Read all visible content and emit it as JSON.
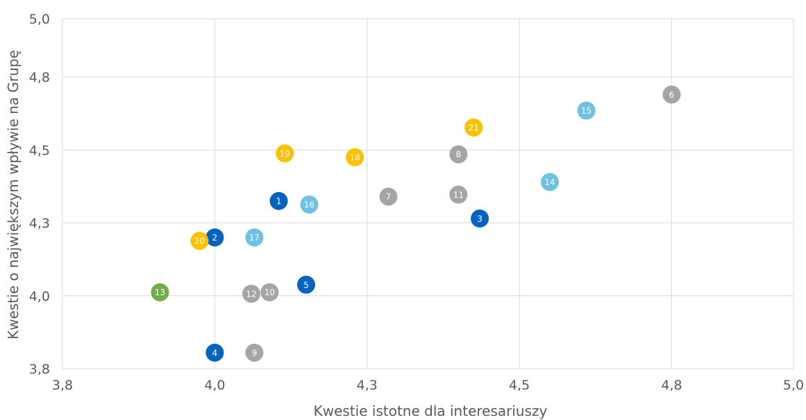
{
  "chart_data": {
    "type": "scatter",
    "xlabel": "Kwestie istotne dla interesariuszy",
    "ylabel": "Kwestie o największym wpływie na Grupę",
    "xlim": [
      3.8,
      5.0
    ],
    "ylim": [
      3.8,
      5.0
    ],
    "x_ticks": [
      3.8,
      4.05,
      4.3,
      4.55,
      4.8,
      5.05
    ],
    "y_ticks": [
      3.8,
      4.05,
      4.3,
      4.55,
      4.8,
      5.05
    ],
    "x_tick_labels": [
      "3,8",
      "4,0",
      "4,3",
      "4,5",
      "4,8",
      "5,0"
    ],
    "y_tick_labels": [
      "3,8",
      "4,0",
      "4,3",
      "4,5",
      "4,8",
      "5,0"
    ],
    "grid": true,
    "colors": {
      "dark-blue": "#0563c1",
      "light-blue": "#6ec1e4",
      "gray": "#a5a5a5",
      "yellow": "#ffc000",
      "green": "#70ad47"
    },
    "points": [
      {
        "label": "1",
        "x": 4.155,
        "y": 4.375,
        "color": "dark-blue"
      },
      {
        "label": "2",
        "x": 4.05,
        "y": 4.25,
        "color": "dark-blue"
      },
      {
        "label": "3",
        "x": 4.485,
        "y": 4.315,
        "color": "dark-blue"
      },
      {
        "label": "4",
        "x": 4.05,
        "y": 3.855,
        "color": "dark-blue"
      },
      {
        "label": "5",
        "x": 4.2,
        "y": 4.088,
        "color": "dark-blue"
      },
      {
        "label": "6",
        "x": 4.8,
        "y": 4.74,
        "color": "gray"
      },
      {
        "label": "7",
        "x": 4.335,
        "y": 4.39,
        "color": "gray"
      },
      {
        "label": "8",
        "x": 4.45,
        "y": 4.535,
        "color": "gray"
      },
      {
        "label": "9",
        "x": 4.115,
        "y": 3.855,
        "color": "gray"
      },
      {
        "label": "10",
        "x": 4.14,
        "y": 4.062,
        "color": "gray"
      },
      {
        "label": "11",
        "x": 4.45,
        "y": 4.397,
        "color": "gray"
      },
      {
        "label": "12",
        "x": 4.11,
        "y": 4.057,
        "color": "gray"
      },
      {
        "label": "13",
        "x": 3.96,
        "y": 4.062,
        "color": "green"
      },
      {
        "label": "14",
        "x": 4.6,
        "y": 4.44,
        "color": "light-blue"
      },
      {
        "label": "15",
        "x": 4.66,
        "y": 4.685,
        "color": "light-blue"
      },
      {
        "label": "16",
        "x": 4.205,
        "y": 4.363,
        "color": "light-blue"
      },
      {
        "label": "17",
        "x": 4.115,
        "y": 4.25,
        "color": "light-blue"
      },
      {
        "label": "18",
        "x": 4.28,
        "y": 4.525,
        "color": "yellow"
      },
      {
        "label": "19",
        "x": 4.165,
        "y": 4.538,
        "color": "yellow"
      },
      {
        "label": "20",
        "x": 4.025,
        "y": 4.238,
        "color": "yellow"
      },
      {
        "label": "21",
        "x": 4.475,
        "y": 4.627,
        "color": "yellow"
      }
    ]
  }
}
